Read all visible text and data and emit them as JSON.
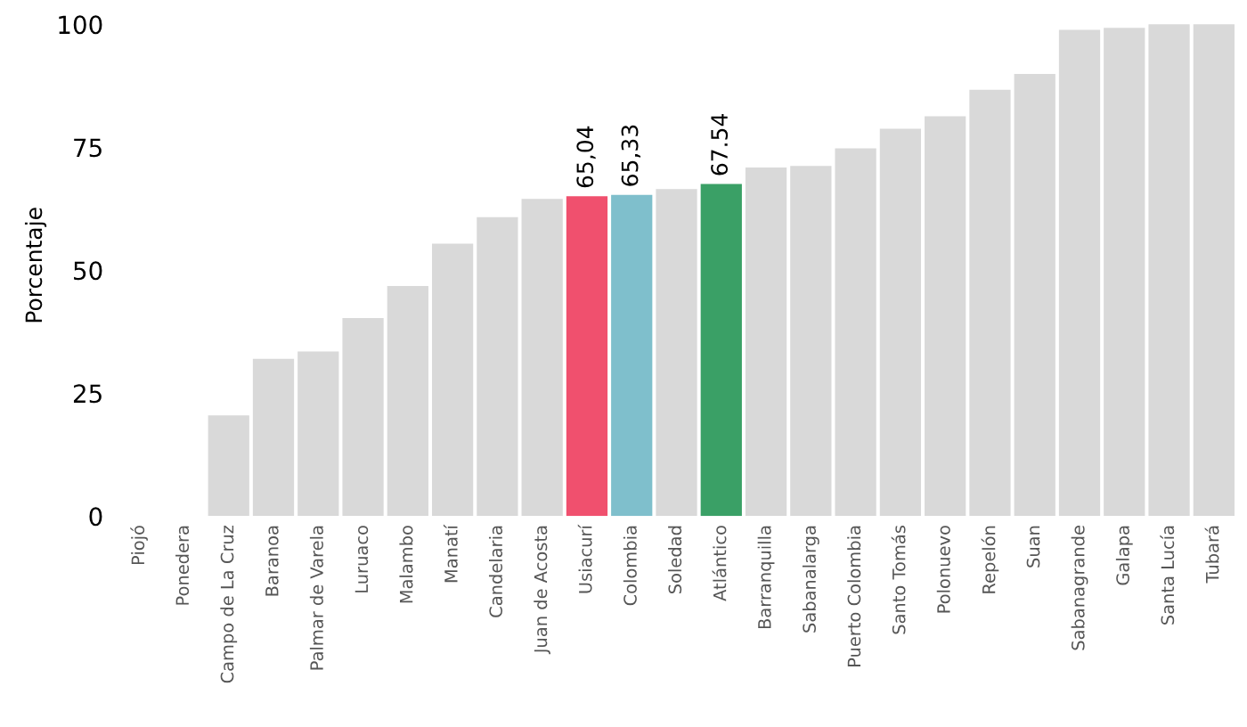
{
  "chart_data": {
    "type": "bar",
    "ylabel": "Porcentaje",
    "categories": [
      "Piojó",
      "Ponedera",
      "Campo de La Cruz",
      "Baranoa",
      "Palmar de Varela",
      "Luruaco",
      "Malambo",
      "Manatí",
      "Candelaria",
      "Juan de Acosta",
      "Usiacurí",
      "Colombia",
      "Soledad",
      "Atlántico",
      "Barranquilla",
      "Sabanalarga",
      "Puerto Colombia",
      "Santo Tomás",
      "Polonuevo",
      "Repelón",
      "Suan",
      "Sabanagrande",
      "Galapa",
      "Santa Lucía",
      "Tubará"
    ],
    "values": [
      0,
      0,
      20.5,
      32,
      33.5,
      40.3,
      46.8,
      55.4,
      60.8,
      64.5,
      65.04,
      65.33,
      66.5,
      67.54,
      70.9,
      71.2,
      74.8,
      78.8,
      81.3,
      86.7,
      89.9,
      98.9,
      99.3,
      100,
      100
    ],
    "colors": [
      "#d9d9d9",
      "#d9d9d9",
      "#d9d9d9",
      "#d9d9d9",
      "#d9d9d9",
      "#d9d9d9",
      "#d9d9d9",
      "#d9d9d9",
      "#d9d9d9",
      "#d9d9d9",
      "#f0506e",
      "#7fbfcc",
      "#d9d9d9",
      "#3aa066",
      "#d9d9d9",
      "#d9d9d9",
      "#d9d9d9",
      "#d9d9d9",
      "#d9d9d9",
      "#d9d9d9",
      "#d9d9d9",
      "#d9d9d9",
      "#d9d9d9",
      "#d9d9d9",
      "#d9d9d9"
    ],
    "value_labels": [
      null,
      null,
      null,
      null,
      null,
      null,
      null,
      null,
      null,
      null,
      "65,04",
      "65,33",
      null,
      "67.54",
      null,
      null,
      null,
      null,
      null,
      null,
      null,
      null,
      null,
      null,
      null
    ],
    "ylim": [
      0,
      102
    ],
    "yticks": [
      0,
      25,
      50,
      75,
      100
    ],
    "grid": false,
    "legend": false
  }
}
